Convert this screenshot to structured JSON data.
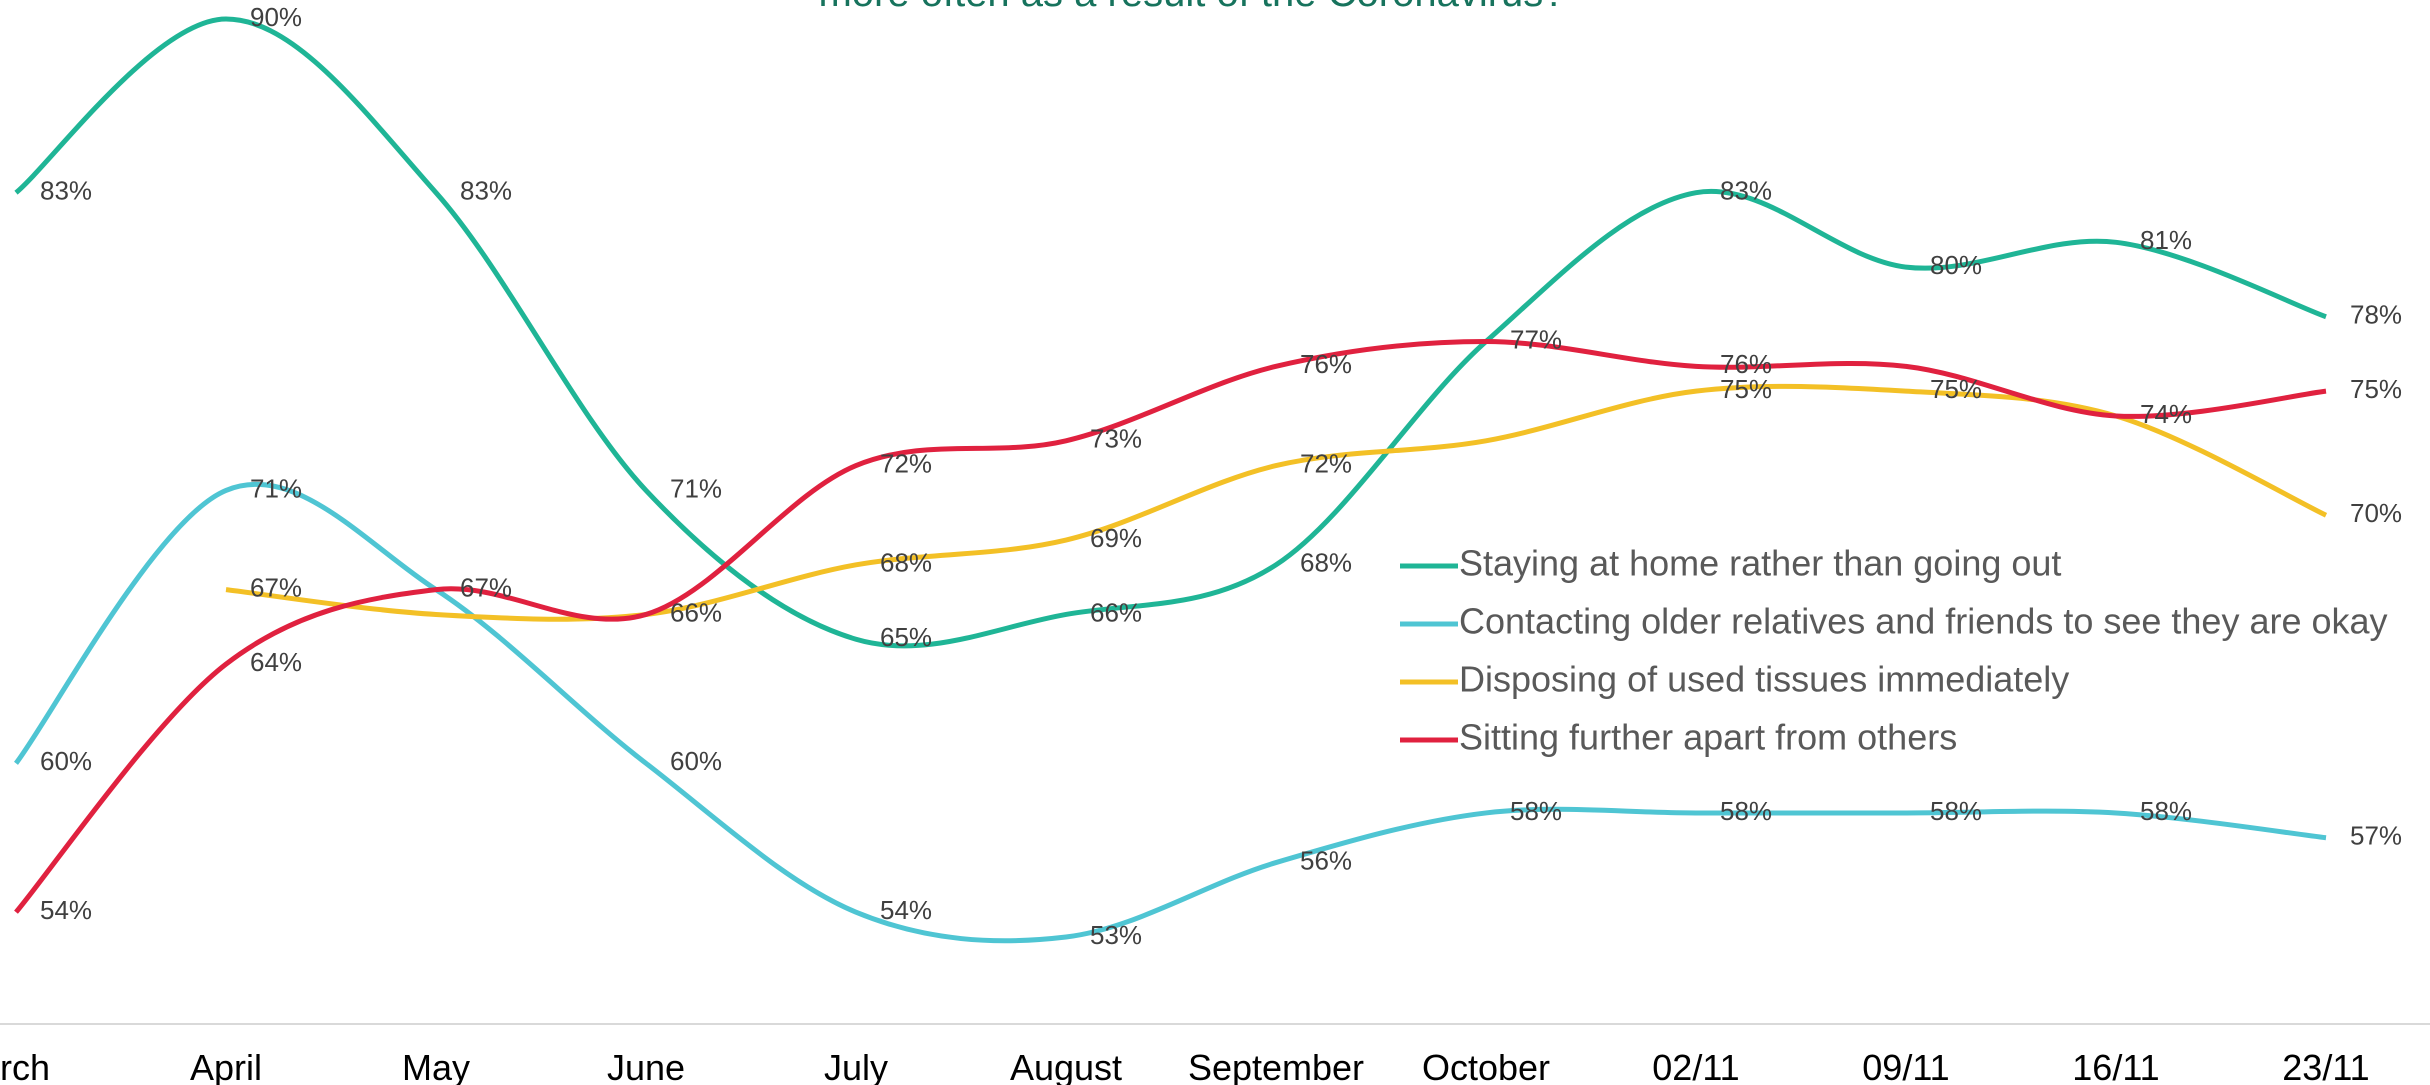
{
  "chart_data": {
    "type": "line",
    "title": "more often as a result of the Coronavirus?",
    "categories": [
      "March",
      "April",
      "May",
      "June",
      "July",
      "August",
      "September",
      "October",
      "02/11",
      "09/11",
      "16/11",
      "23/11"
    ],
    "series": [
      {
        "name": "Staying at home rather than going out",
        "color": "#1fb596",
        "values": [
          83,
          90,
          83,
          71,
          65,
          66,
          68,
          77,
          83,
          80,
          81,
          78
        ],
        "value_labels": [
          "83%",
          "90%",
          "83%",
          "71%",
          "65%",
          "66%",
          "68%",
          "77%",
          "83%",
          "80%",
          "81%",
          "78%"
        ]
      },
      {
        "name": "Contacting older relatives and friends to see they are okay",
        "color": "#4fc5d3",
        "values": [
          60,
          71,
          67,
          60,
          54,
          53,
          56,
          58,
          58,
          58,
          58,
          57
        ],
        "value_labels": [
          "60%",
          "71%",
          null,
          "60%",
          "54%",
          "53%",
          "56%",
          "58%",
          "58%",
          "58%",
          "58%",
          "57%"
        ]
      },
      {
        "name": "Disposing of used tissues immediately",
        "color": "#f3c026",
        "values": [
          null,
          67,
          66,
          66,
          68,
          69,
          72,
          73,
          75,
          75,
          74,
          70
        ],
        "value_labels": [
          null,
          "67%",
          null,
          "66%",
          "68%",
          "69%",
          "72%",
          null,
          "75%",
          "75%",
          null,
          "70%"
        ]
      },
      {
        "name": "Sitting further apart from others",
        "color": "#e0213f",
        "values": [
          54,
          64,
          67,
          66,
          72,
          73,
          76,
          77,
          76,
          76,
          74,
          75
        ],
        "value_labels": [
          "54%",
          "64%",
          "67%",
          null,
          "72%",
          "73%",
          "76%",
          null,
          "76%",
          null,
          "74%",
          "75%"
        ]
      }
    ]
  }
}
